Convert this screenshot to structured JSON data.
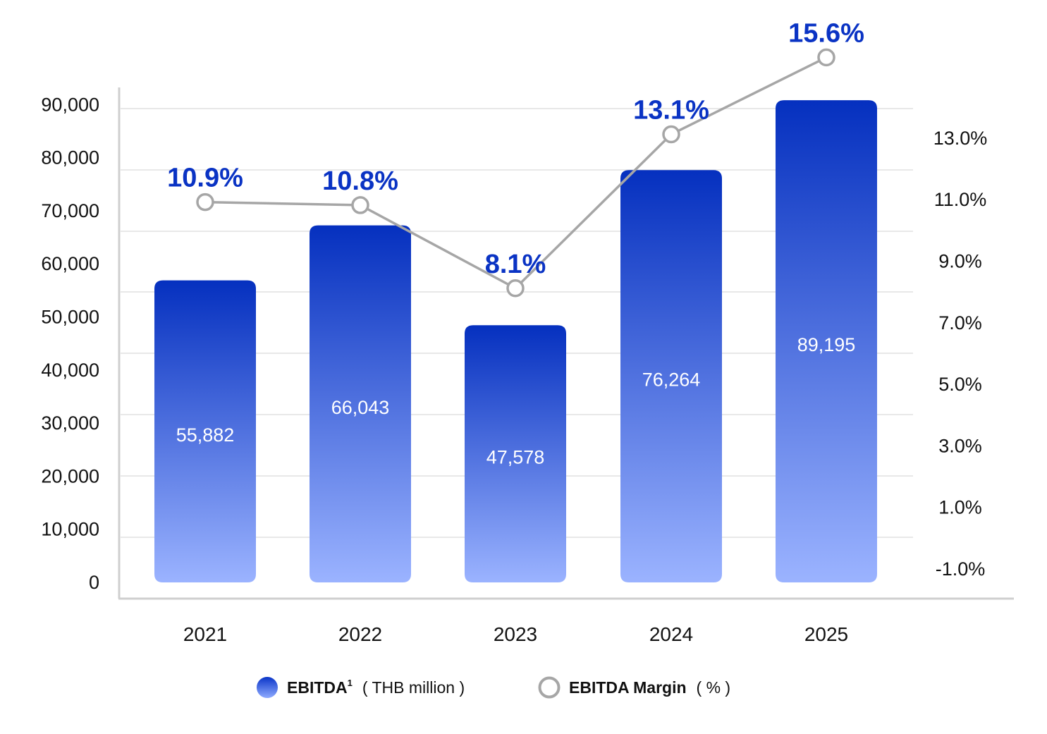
{
  "chart_data": {
    "type": "bar",
    "categories": [
      "2021",
      "2022",
      "2023",
      "2024",
      "2025"
    ],
    "series": [
      {
        "name": "EBITDA",
        "superscript": "1",
        "unit": "( THB million )",
        "type": "bar",
        "axis": "left",
        "values": [
          55882,
          66043,
          47578,
          76264,
          89195
        ],
        "labels": [
          "55,882",
          "66,043",
          "47,578",
          "76,264",
          "89,195"
        ]
      },
      {
        "name": "EBITDA Margin",
        "unit": "( % )",
        "type": "line",
        "axis": "right",
        "values": [
          10.9,
          10.8,
          8.1,
          13.1,
          15.6
        ],
        "labels": [
          "10.9%",
          "10.8%",
          "8.1%",
          "13.1%",
          "15.6%"
        ]
      }
    ],
    "left_axis": {
      "ylim": [
        0,
        90000
      ],
      "ticks": [
        "0",
        "10,000",
        "20,000",
        "30,000",
        "40,000",
        "50,000",
        "60,000",
        "70,000",
        "80,000",
        "90,000"
      ]
    },
    "right_axis": {
      "ylim": [
        -1.0,
        13.0
      ],
      "ticks": [
        "-1.0%",
        "1.0%",
        "3.0%",
        "5.0%",
        "7.0%",
        "9.0%",
        "11.0%",
        "13.0%"
      ]
    },
    "grid": true,
    "legend": "bottom-center",
    "colors": {
      "bar_top": "#0530bf",
      "bar_bottom": "#9bb3ff",
      "line": "#a6a6a6",
      "label": "#0a33c4"
    }
  }
}
